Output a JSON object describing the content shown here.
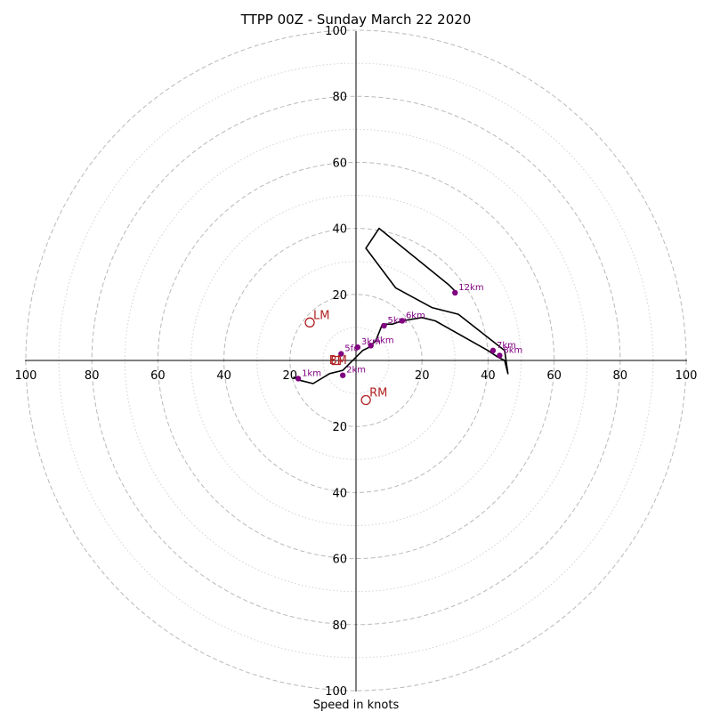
{
  "chart_data": {
    "type": "scatter",
    "title": "TTPP 00Z - Sunday March 22 2020",
    "xlabel": "Speed in knots",
    "ylabel": "",
    "xlim": [
      -100,
      100
    ],
    "ylim": [
      -100,
      100
    ],
    "major_rings": [
      20,
      40,
      60,
      80,
      100
    ],
    "minor_rings": [
      10,
      30,
      50,
      70,
      90
    ],
    "tick_labels": {
      "left": [
        "100",
        "80",
        "60",
        "40",
        "20"
      ],
      "right": [
        "20",
        "40",
        "60",
        "80",
        "100"
      ],
      "top": [
        "100",
        "80",
        "60",
        "40",
        "20"
      ],
      "bottom": [
        "20",
        "40",
        "60",
        "80",
        "100"
      ]
    },
    "tick_values": [
      20,
      40,
      60,
      80,
      100
    ],
    "grid": true,
    "colors": {
      "trace": "#000000",
      "heights": "#800080",
      "motion": "#b22222",
      "grid": "#b9b9b9"
    },
    "series": [
      {
        "values": [
          [
            -19,
            -5
          ],
          [
            -17,
            -6
          ],
          [
            -13,
            -7
          ],
          [
            -8,
            -4
          ],
          [
            -4,
            -3
          ],
          [
            -2,
            -1
          ],
          [
            0,
            1
          ],
          [
            2,
            3
          ],
          [
            4,
            4
          ],
          [
            6,
            6
          ],
          [
            8,
            11
          ],
          [
            11,
            11
          ],
          [
            14,
            12
          ],
          [
            20,
            13
          ],
          [
            24,
            12
          ],
          [
            40,
            3
          ],
          [
            43,
            1
          ],
          [
            45,
            0
          ],
          [
            46,
            -4
          ],
          [
            45,
            3
          ],
          [
            31,
            14
          ],
          [
            23,
            16
          ],
          [
            12,
            22
          ],
          [
            3,
            34
          ],
          [
            7,
            40
          ],
          [
            28,
            23
          ],
          [
            30,
            21
          ]
        ]
      }
    ],
    "height_points": [
      {
        "label": "1km",
        "x": -17.5,
        "y": -5.5
      },
      {
        "label": "2km",
        "x": -4,
        "y": -4.5
      },
      {
        "label": "3km",
        "x": 0.5,
        "y": 4
      },
      {
        "label": "4km",
        "x": 4.5,
        "y": 4.5
      },
      {
        "label": "5km",
        "x": 8.5,
        "y": 10.5
      },
      {
        "label": "6km",
        "x": 14,
        "y": 12
      },
      {
        "label": "7km",
        "x": 41.5,
        "y": 3
      },
      {
        "label": "8km",
        "x": 43.5,
        "y": 1.5
      },
      {
        "label": "12km",
        "x": 30,
        "y": 20.5
      },
      {
        "label": "5fc",
        "x": -4.5,
        "y": 2
      }
    ],
    "storm_motion": [
      {
        "label": "LM",
        "x": -14,
        "y": 11.5,
        "marker": "circle"
      },
      {
        "label": "RM",
        "x": 3,
        "y": -12,
        "marker": "circle"
      },
      {
        "label": "BM",
        "x": -6,
        "y": 0,
        "marker": "square"
      }
    ]
  }
}
